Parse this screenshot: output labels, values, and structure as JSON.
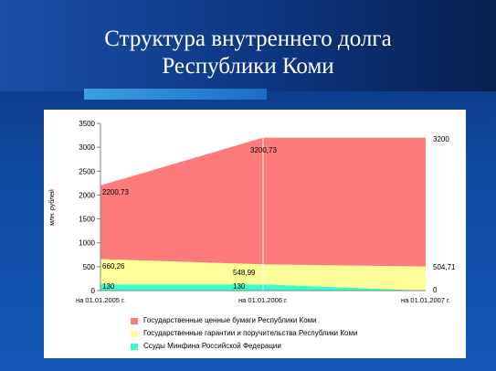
{
  "slide": {
    "title_line1": "Структура внутреннего долга",
    "title_line2": "Республики Коми"
  },
  "chart_data": {
    "type": "area",
    "stacked": true,
    "categories": [
      "на 01.01.2005 г.",
      "на 01.01.2006 г.",
      "на 01.01.2007 г."
    ],
    "ylabel": "млн. рублей",
    "ylim": [
      0,
      3500
    ],
    "yticks": [
      0,
      500,
      1000,
      1500,
      2000,
      2500,
      3000,
      3500
    ],
    "series": [
      {
        "name": "Ссуды Минфина Российской Федерации",
        "values": [
          130,
          130,
          0
        ],
        "color": "#33ffcc",
        "labels": [
          "130",
          "130",
          "0"
        ]
      },
      {
        "name": "Государственные гарантии и поручительства Республики Коми",
        "values": [
          530.26,
          418.99,
          504.71
        ],
        "color": "#ffff99",
        "labels": [
          "660,26",
          "548,99",
          "504,71"
        ]
      },
      {
        "name": "Государственные ценные бумаги Республики Коми",
        "values": [
          1540.47,
          2651.74,
          2695.29
        ],
        "color": "#ff7a7a",
        "labels": [
          "2200,73",
          "3200,73",
          "3200"
        ]
      }
    ],
    "legend_order": [
      2,
      1,
      0
    ],
    "legend_position": "bottom",
    "grid": false
  }
}
